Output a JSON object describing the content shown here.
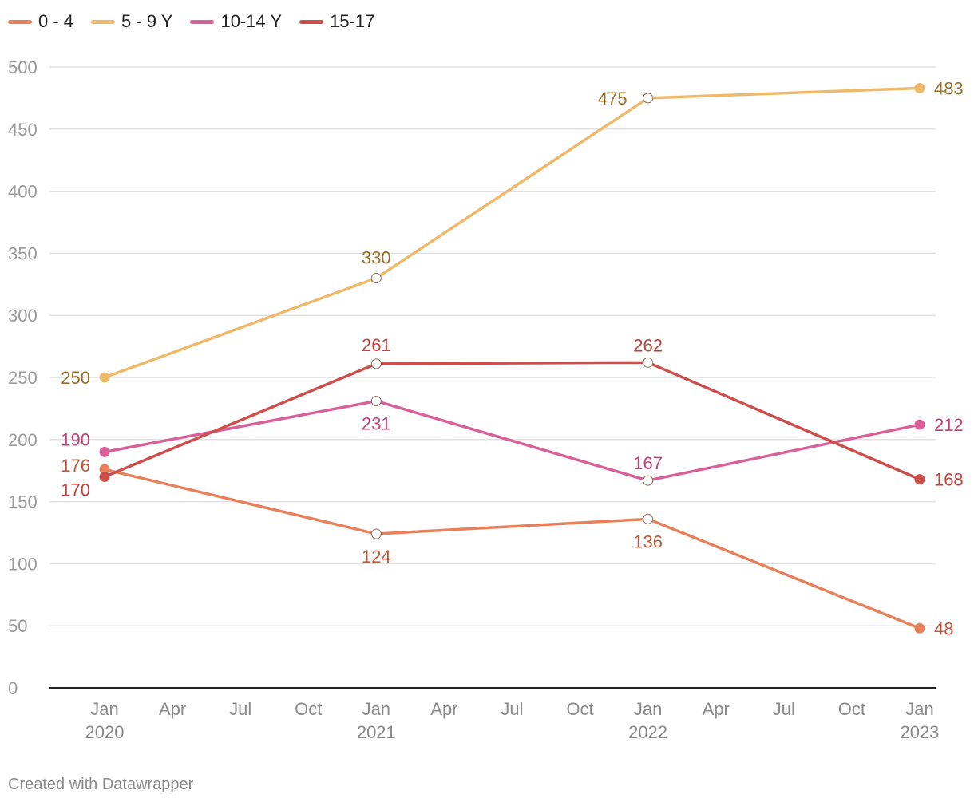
{
  "legend": [
    {
      "name": "0 - 4",
      "color": "#e8805a"
    },
    {
      "name": "5 - 9 Y",
      "color": "#efb96a"
    },
    {
      "name": "10-14 Y",
      "color": "#d9619a"
    },
    {
      "name": "15-17",
      "color": "#cc4f4c"
    }
  ],
  "footer": "Created with Datawrapper",
  "chart_data": {
    "type": "line",
    "x": [
      "2020-01",
      "2021-01",
      "2022-01",
      "2023-01"
    ],
    "series": [
      {
        "name": "0 - 4",
        "color": "#e8805a",
        "label_color": "#c4573a",
        "values": [
          176,
          124,
          136,
          48
        ]
      },
      {
        "name": "5 - 9 Y",
        "color": "#efb96a",
        "label_color": "#9a6f2a",
        "values": [
          250,
          330,
          475,
          483
        ]
      },
      {
        "name": "10-14 Y",
        "color": "#d9619a",
        "label_color": "#c23f78",
        "values": [
          190,
          231,
          167,
          212
        ]
      },
      {
        "name": "15-17",
        "color": "#cc4f4c",
        "label_color": "#c0403c",
        "values": [
          170,
          261,
          262,
          168
        ]
      }
    ],
    "ylim": [
      0,
      500
    ],
    "yticks": [
      0,
      50,
      100,
      150,
      200,
      250,
      300,
      350,
      400,
      450,
      500
    ],
    "xticks": [
      {
        "month": "Jan",
        "year": "2020"
      },
      {
        "month": "Apr",
        "year": ""
      },
      {
        "month": "Jul",
        "year": ""
      },
      {
        "month": "Oct",
        "year": ""
      },
      {
        "month": "Jan",
        "year": "2021"
      },
      {
        "month": "Apr",
        "year": ""
      },
      {
        "month": "Jul",
        "year": ""
      },
      {
        "month": "Oct",
        "year": ""
      },
      {
        "month": "Jan",
        "year": "2022"
      },
      {
        "month": "Apr",
        "year": ""
      },
      {
        "month": "Jul",
        "year": ""
      },
      {
        "month": "Oct",
        "year": ""
      },
      {
        "month": "Jan",
        "year": "2023"
      }
    ],
    "grid": true,
    "legend_position": "top-left",
    "title": "",
    "xlabel": "",
    "ylabel": ""
  }
}
